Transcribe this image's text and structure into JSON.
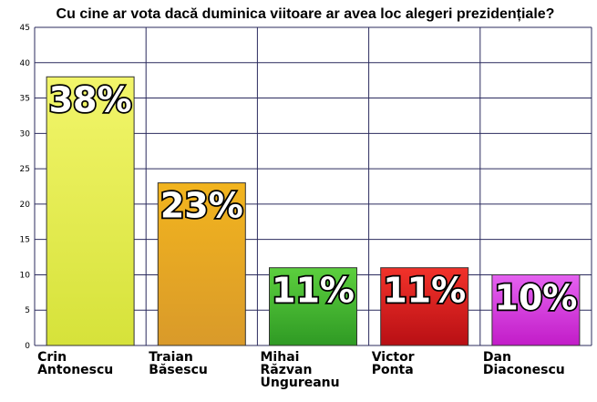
{
  "chart_data": {
    "type": "bar",
    "title": "Cu cine ar vota dacă duminica viitoare ar avea loc alegeri prezidențiale?",
    "xlabel": "",
    "ylabel": "",
    "ylim": [
      0,
      45
    ],
    "yticks": [
      0,
      5,
      10,
      15,
      20,
      25,
      30,
      35,
      40,
      45
    ],
    "grid": true,
    "categories": [
      [
        "Crin",
        "Antonescu"
      ],
      [
        "Traian",
        "Băsescu"
      ],
      [
        "Mihai",
        "Răzvan",
        "Ungureanu"
      ],
      [
        "Victor",
        "Ponta"
      ],
      [
        "Dan",
        "Diaconescu"
      ]
    ],
    "values": [
      38,
      23,
      11,
      11,
      10
    ],
    "data_labels": [
      "38%",
      "23%",
      "11%",
      "11%",
      "10%"
    ],
    "colors": [
      [
        "#f2f56a",
        "#d6e23a"
      ],
      [
        "#f2b41e",
        "#d99a2a"
      ],
      [
        "#5ccf3e",
        "#2f9a24"
      ],
      [
        "#f2322a",
        "#b80f14"
      ],
      [
        "#e462f0",
        "#c21cc8"
      ]
    ]
  }
}
